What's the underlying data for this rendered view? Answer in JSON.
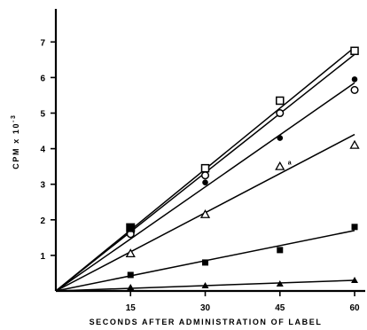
{
  "chart_data": {
    "type": "scatter",
    "title": "",
    "xlabel": "SECONDS AFTER ADMINISTRATION OF LABEL",
    "ylabel": "CPM x 10",
    "ylabel_exponent": "-3",
    "xlim": [
      0,
      65
    ],
    "ylim": [
      0,
      8
    ],
    "x_ticks": [
      15,
      30,
      45,
      60
    ],
    "y_ticks": [
      1,
      2,
      3,
      4,
      5,
      6,
      7
    ],
    "grid": false,
    "legend": "none",
    "annotation": "a",
    "series": [
      {
        "marker": "open-square",
        "x": [
          15,
          30,
          45,
          60
        ],
        "y": [
          1.75,
          3.45,
          5.35,
          6.75
        ],
        "fit": [
          [
            0,
            0
          ],
          [
            60,
            6.85
          ]
        ]
      },
      {
        "marker": "open-circle",
        "x": [
          15,
          30,
          45,
          60
        ],
        "y": [
          1.6,
          3.25,
          5.0,
          5.65
        ],
        "fit": [
          [
            0,
            0
          ],
          [
            60,
            6.65
          ]
        ]
      },
      {
        "marker": "filled-circle",
        "x": [
          15,
          30,
          45,
          60
        ],
        "y": [
          1.8,
          3.05,
          4.3,
          5.95
        ],
        "fit": [
          [
            0,
            0
          ],
          [
            60,
            5.85
          ]
        ]
      },
      {
        "marker": "open-triangle",
        "x": [
          15,
          30,
          45,
          60
        ],
        "y": [
          1.05,
          2.15,
          3.5,
          4.1
        ],
        "fit": [
          [
            0,
            0
          ],
          [
            60,
            4.4
          ]
        ]
      },
      {
        "marker": "filled-square",
        "x": [
          15,
          30,
          45,
          60
        ],
        "y": [
          0.45,
          0.8,
          1.15,
          1.8
        ],
        "fit": [
          [
            0,
            0
          ],
          [
            60,
            1.7
          ]
        ]
      },
      {
        "marker": "filled-triangle",
        "x": [
          15,
          30,
          45,
          60
        ],
        "y": [
          0.1,
          0.15,
          0.2,
          0.3
        ],
        "fit": [
          [
            0,
            0
          ],
          [
            60,
            0.3
          ]
        ]
      },
      {
        "marker": "filled-square-large",
        "x": [
          15
        ],
        "y": [
          1.78
        ],
        "fit": null
      }
    ]
  }
}
